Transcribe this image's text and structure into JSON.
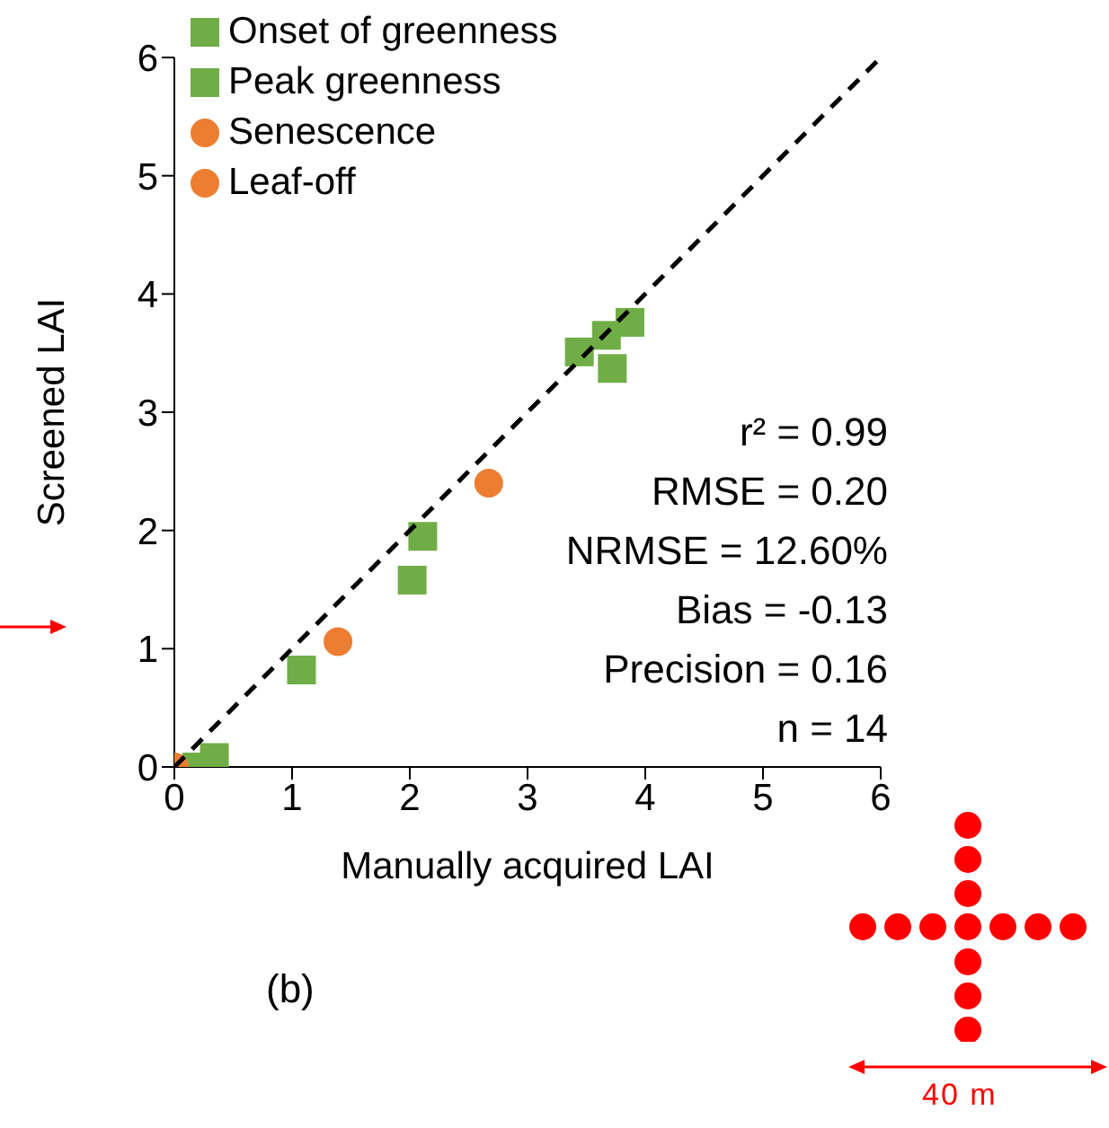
{
  "chart_data": {
    "type": "scatter",
    "xlabel": "Manually acquired LAI",
    "ylabel": "Screened LAI",
    "xlim": [
      0,
      6
    ],
    "ylim": [
      0,
      6
    ],
    "xticks": [
      0,
      1,
      2,
      3,
      4,
      5,
      6
    ],
    "yticks": [
      0,
      1,
      2,
      3,
      4,
      5,
      6
    ],
    "grid": false,
    "legend": "top left",
    "series": [
      {
        "name": "Onset of greenness",
        "color": "#70ad47",
        "marker": "square",
        "x": [
          2.11,
          2.02,
          1.08,
          0.19,
          0.34
        ],
        "values": [
          1.95,
          1.58,
          0.82,
          0,
          0.08
        ]
      },
      {
        "name": "Peak greenness",
        "color": "#70ad47",
        "marker": "square",
        "x": [
          3.44,
          3.67,
          3.87,
          3.72
        ],
        "values": [
          3.51,
          3.65,
          3.76,
          3.37
        ]
      },
      {
        "name": "Senescence",
        "color": "#ed7d31",
        "marker": "circle",
        "x": [
          2.67,
          1.39
        ],
        "values": [
          2.4,
          1.06
        ]
      },
      {
        "name": "Leaf-off",
        "color": "#ed7d31",
        "marker": "circle",
        "x": [
          0
        ],
        "values": [
          0
        ]
      },
      {
        "type": "line",
        "color": "#000000",
        "line_style": "dashed",
        "marker": "none",
        "x": [
          0,
          6
        ],
        "values": [
          0,
          6
        ]
      }
    ],
    "annotations": [
      "r² = 0.99",
      "RMSE = 0.20",
      "NRMSE = 12.60%",
      "Bias = -0.13",
      "Precision = 0.16",
      "n = 14",
      "(b)",
      "40 m"
    ]
  }
}
